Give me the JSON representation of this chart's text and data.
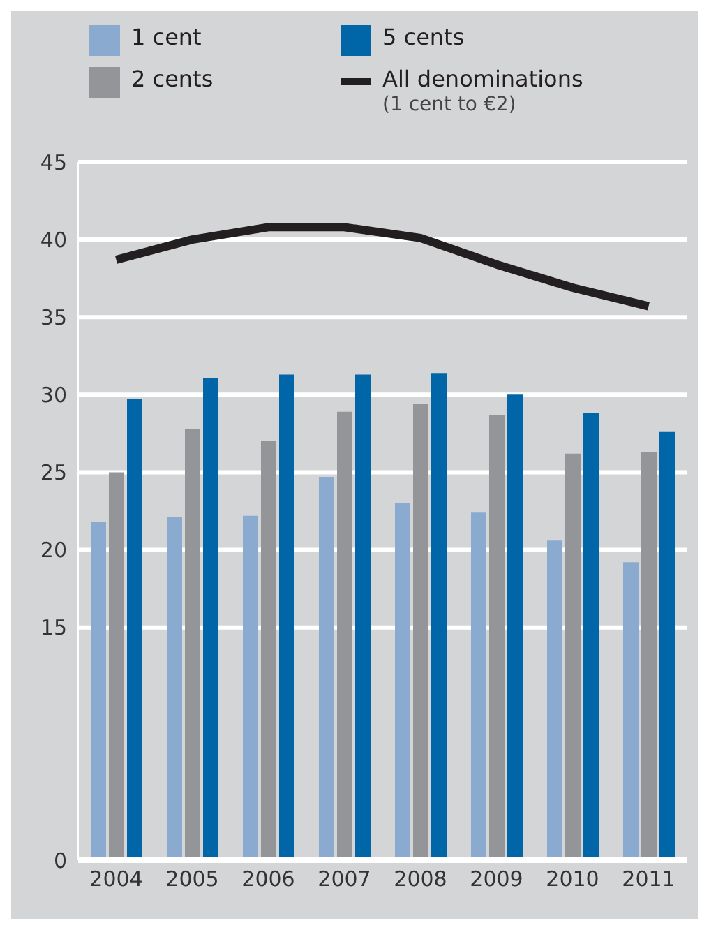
{
  "chart_data": {
    "type": "bar",
    "categories": [
      "2004",
      "2005",
      "2006",
      "2007",
      "2008",
      "2009",
      "2010",
      "2011"
    ],
    "series": [
      {
        "name": "1 cent",
        "color": "#8aaad0",
        "values": [
          21.8,
          22.1,
          22.2,
          24.7,
          23.0,
          22.4,
          20.6,
          19.2
        ]
      },
      {
        "name": "2 cents",
        "color": "#939598",
        "values": [
          25.0,
          27.8,
          27.0,
          28.9,
          29.4,
          28.7,
          26.2,
          26.3
        ]
      },
      {
        "name": "5 cents",
        "color": "#0066a8",
        "values": [
          29.7,
          31.1,
          31.3,
          31.3,
          31.4,
          30.0,
          28.8,
          27.6
        ]
      },
      {
        "name": "All denominations\n(1 cent to €2)",
        "type": "line",
        "color": "#231f20",
        "values": [
          38.7,
          40.0,
          40.8,
          40.8,
          40.1,
          38.4,
          36.9,
          35.7
        ]
      }
    ],
    "ylim": [
      0,
      45
    ],
    "yticks": [
      0,
      15,
      20,
      25,
      30,
      35,
      40,
      45
    ],
    "grid": "y",
    "legend": "top",
    "marker": "none"
  }
}
